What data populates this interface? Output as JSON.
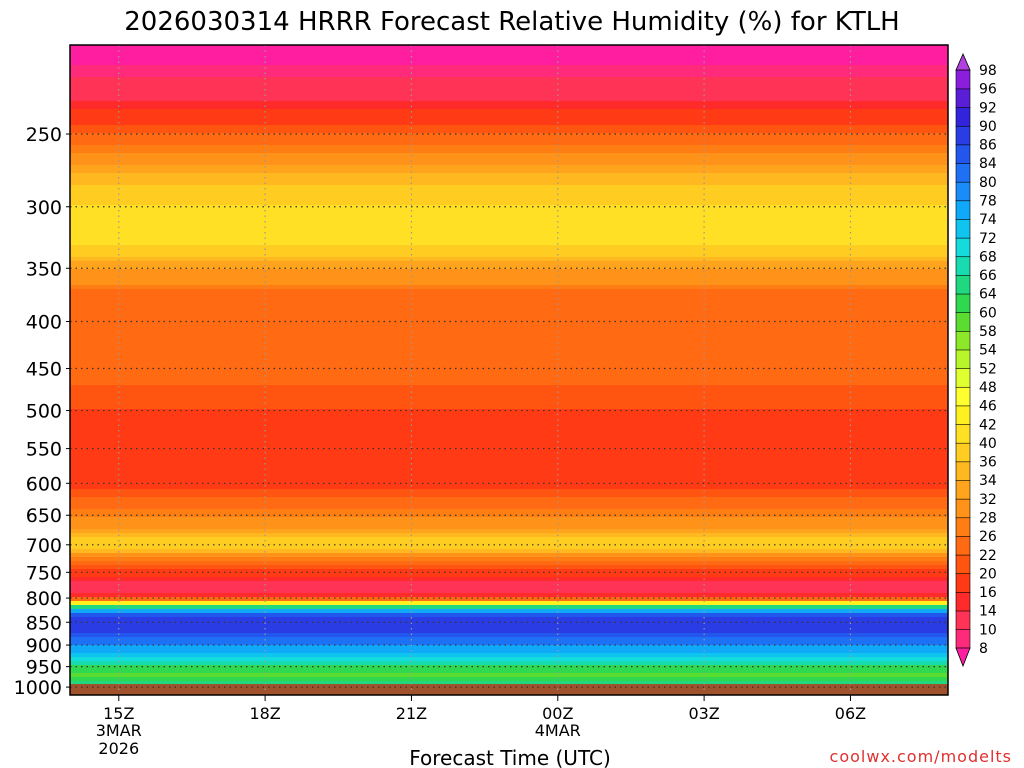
{
  "chart_data": {
    "type": "heatmap",
    "title": "2026030314 HRRR Forecast Relative Humidity (%) for KTLH",
    "xlabel": "Forecast Time (UTC)",
    "ylabel": "",
    "credit": "coolwx.com/modelts",
    "x_ticks": [
      {
        "label": "15Z",
        "sub1": "3MAR",
        "sub2": "2026",
        "hour": 15
      },
      {
        "label": "18Z",
        "sub1": "",
        "sub2": "",
        "hour": 18
      },
      {
        "label": "21Z",
        "sub1": "",
        "sub2": "",
        "hour": 21
      },
      {
        "label": "00Z",
        "sub1": "4MAR",
        "sub2": "",
        "hour": 24
      },
      {
        "label": "03Z",
        "sub1": "",
        "sub2": "",
        "hour": 27
      },
      {
        "label": "06Z",
        "sub1": "",
        "sub2": "",
        "hour": 30
      }
    ],
    "x_range_hours": [
      14,
      32
    ],
    "y_ticks": [
      250,
      300,
      350,
      400,
      450,
      500,
      550,
      600,
      650,
      700,
      750,
      800,
      850,
      900,
      950,
      1000
    ],
    "y_range_hpa": [
      200,
      1020
    ],
    "y_scale": "log",
    "grid": true,
    "colorbar": {
      "levels": [
        8,
        10,
        14,
        16,
        20,
        22,
        26,
        28,
        32,
        34,
        36,
        40,
        42,
        46,
        48,
        52,
        54,
        58,
        60,
        64,
        66,
        68,
        72,
        74,
        78,
        80,
        84,
        86,
        90,
        92,
        96,
        98
      ],
      "colors": [
        "#ff1ea0",
        "#ff2b7a",
        "#ff3355",
        "#ff2a2a",
        "#ff3a14",
        "#ff5510",
        "#ff6a12",
        "#ff7e14",
        "#ff9218",
        "#ffa41c",
        "#ffb820",
        "#ffcc22",
        "#ffe024",
        "#fff020",
        "#ffff30",
        "#e0ff30",
        "#b8f52a",
        "#8ce828",
        "#5adc30",
        "#30d850",
        "#20d880",
        "#18dcb0",
        "#14dcdc",
        "#10c4f0",
        "#10a8f8",
        "#1a8cf8",
        "#1e70f4",
        "#2256ec",
        "#2a3ce4",
        "#3224dc",
        "#5a1ed8",
        "#8a1edc",
        "#b040e0"
      ]
    },
    "rh_profile": {
      "pressure": [
        210,
        230,
        250,
        270,
        290,
        310,
        330,
        350,
        370,
        390,
        410,
        440,
        470,
        500,
        540,
        580,
        620,
        650,
        680,
        700,
        720,
        745,
        770,
        790,
        805,
        820,
        835,
        850,
        870,
        890,
        910,
        930,
        950,
        970,
        990,
        1010
      ],
      "rh": [
        8,
        14,
        22,
        32,
        38,
        42,
        40,
        32,
        26,
        22,
        26,
        24,
        22,
        20,
        18,
        16,
        22,
        28,
        34,
        40,
        30,
        20,
        14,
        10,
        30,
        70,
        86,
        88,
        86,
        82,
        76,
        70,
        64,
        58,
        66,
        80
      ]
    },
    "surface_color": "#a0522d"
  }
}
